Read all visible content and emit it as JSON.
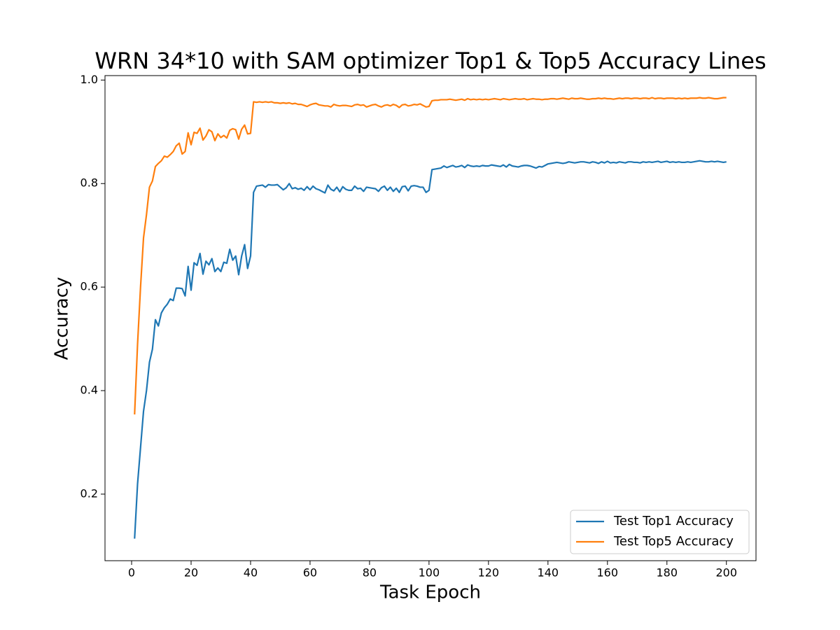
{
  "chart_data": {
    "type": "line",
    "title": "WRN 34*10 with SAM optimizer Top1 & Top5 Accuracy Lines",
    "x_label": "Task Epoch",
    "y_label": "Accuracy",
    "xlim": [
      -8.95,
      209.95
    ],
    "ylim": [
      0.0714,
      1.0086
    ],
    "xticks": [
      0,
      20,
      40,
      60,
      80,
      100,
      120,
      140,
      160,
      180,
      200
    ],
    "yticks": [
      0.2,
      0.4,
      0.6,
      0.8,
      {
        "value": 1,
        "label": "1.0"
      }
    ],
    "grid": false,
    "legend": "lower right",
    "x": [
      1,
      2,
      3,
      4,
      5,
      6,
      7,
      8,
      9,
      10,
      11,
      12,
      13,
      14,
      15,
      16,
      17,
      18,
      19,
      20,
      21,
      22,
      23,
      24,
      25,
      26,
      27,
      28,
      29,
      30,
      31,
      32,
      33,
      34,
      35,
      36,
      37,
      38,
      39,
      40,
      41,
      42,
      43,
      44,
      45,
      46,
      47,
      48,
      49,
      50,
      51,
      52,
      53,
      54,
      55,
      56,
      57,
      58,
      59,
      60,
      61,
      62,
      63,
      64,
      65,
      66,
      67,
      68,
      69,
      70,
      71,
      72,
      73,
      74,
      75,
      76,
      77,
      78,
      79,
      80,
      81,
      82,
      83,
      84,
      85,
      86,
      87,
      88,
      89,
      90,
      91,
      92,
      93,
      94,
      95,
      96,
      97,
      98,
      99,
      100,
      101,
      102,
      103,
      104,
      105,
      106,
      107,
      108,
      109,
      110,
      111,
      112,
      113,
      114,
      115,
      116,
      117,
      118,
      119,
      120,
      121,
      122,
      123,
      124,
      125,
      126,
      127,
      128,
      129,
      130,
      131,
      132,
      133,
      134,
      135,
      136,
      137,
      138,
      139,
      140,
      141,
      142,
      143,
      144,
      145,
      146,
      147,
      148,
      149,
      150,
      151,
      152,
      153,
      154,
      155,
      156,
      157,
      158,
      159,
      160,
      161,
      162,
      163,
      164,
      165,
      166,
      167,
      168,
      169,
      170,
      171,
      172,
      173,
      174,
      175,
      176,
      177,
      178,
      179,
      180,
      181,
      182,
      183,
      184,
      185,
      186,
      187,
      188,
      189,
      190,
      191,
      192,
      193,
      194,
      195,
      196,
      197,
      198,
      199,
      200
    ],
    "series": [
      {
        "name": "Test Top1 Accuracy",
        "color": "#1f77b4",
        "values": [
          0.114,
          0.22,
          0.29,
          0.36,
          0.4,
          0.455,
          0.48,
          0.537,
          0.525,
          0.55,
          0.56,
          0.567,
          0.577,
          0.574,
          0.598,
          0.598,
          0.597,
          0.583,
          0.64,
          0.594,
          0.647,
          0.642,
          0.665,
          0.625,
          0.65,
          0.643,
          0.655,
          0.63,
          0.637,
          0.63,
          0.648,
          0.646,
          0.673,
          0.652,
          0.66,
          0.624,
          0.66,
          0.682,
          0.636,
          0.66,
          0.783,
          0.795,
          0.796,
          0.797,
          0.793,
          0.798,
          0.797,
          0.797,
          0.798,
          0.793,
          0.788,
          0.792,
          0.8,
          0.79,
          0.792,
          0.789,
          0.791,
          0.787,
          0.794,
          0.788,
          0.795,
          0.79,
          0.788,
          0.785,
          0.782,
          0.797,
          0.789,
          0.786,
          0.793,
          0.784,
          0.794,
          0.789,
          0.787,
          0.787,
          0.795,
          0.79,
          0.791,
          0.785,
          0.793,
          0.792,
          0.791,
          0.79,
          0.785,
          0.792,
          0.795,
          0.787,
          0.793,
          0.785,
          0.791,
          0.783,
          0.794,
          0.795,
          0.786,
          0.795,
          0.796,
          0.795,
          0.793,
          0.793,
          0.783,
          0.787,
          0.827,
          0.828,
          0.829,
          0.83,
          0.834,
          0.831,
          0.833,
          0.835,
          0.832,
          0.833,
          0.835,
          0.831,
          0.836,
          0.834,
          0.833,
          0.834,
          0.833,
          0.835,
          0.834,
          0.834,
          0.836,
          0.835,
          0.834,
          0.833,
          0.836,
          0.832,
          0.837,
          0.834,
          0.833,
          0.832,
          0.834,
          0.835,
          0.835,
          0.834,
          0.832,
          0.83,
          0.833,
          0.832,
          0.835,
          0.838,
          0.839,
          0.84,
          0.841,
          0.84,
          0.839,
          0.84,
          0.842,
          0.841,
          0.84,
          0.841,
          0.842,
          0.842,
          0.841,
          0.84,
          0.842,
          0.841,
          0.839,
          0.842,
          0.84,
          0.843,
          0.84,
          0.841,
          0.84,
          0.842,
          0.841,
          0.84,
          0.842,
          0.842,
          0.841,
          0.841,
          0.84,
          0.842,
          0.841,
          0.842,
          0.841,
          0.842,
          0.843,
          0.841,
          0.842,
          0.843,
          0.841,
          0.842,
          0.841,
          0.842,
          0.841,
          0.841,
          0.842,
          0.841,
          0.842,
          0.843,
          0.844,
          0.843,
          0.842,
          0.842,
          0.843,
          0.842,
          0.843,
          0.842,
          0.841,
          0.842
        ]
      },
      {
        "name": "Test Top5 Accuracy",
        "color": "#ff7f0e",
        "values": [
          0.354,
          0.49,
          0.6,
          0.695,
          0.74,
          0.793,
          0.805,
          0.833,
          0.839,
          0.844,
          0.853,
          0.851,
          0.856,
          0.862,
          0.873,
          0.878,
          0.857,
          0.862,
          0.898,
          0.875,
          0.899,
          0.897,
          0.907,
          0.884,
          0.892,
          0.904,
          0.9,
          0.883,
          0.896,
          0.889,
          0.893,
          0.888,
          0.903,
          0.906,
          0.904,
          0.886,
          0.905,
          0.913,
          0.896,
          0.897,
          0.958,
          0.957,
          0.958,
          0.957,
          0.958,
          0.957,
          0.958,
          0.956,
          0.956,
          0.955,
          0.956,
          0.955,
          0.956,
          0.954,
          0.955,
          0.953,
          0.953,
          0.951,
          0.949,
          0.952,
          0.954,
          0.955,
          0.952,
          0.951,
          0.95,
          0.95,
          0.948,
          0.953,
          0.951,
          0.95,
          0.951,
          0.951,
          0.95,
          0.949,
          0.952,
          0.953,
          0.951,
          0.952,
          0.948,
          0.95,
          0.952,
          0.953,
          0.95,
          0.948,
          0.951,
          0.952,
          0.95,
          0.953,
          0.951,
          0.947,
          0.952,
          0.953,
          0.95,
          0.951,
          0.953,
          0.952,
          0.954,
          0.951,
          0.948,
          0.949,
          0.96,
          0.961,
          0.961,
          0.962,
          0.962,
          0.962,
          0.963,
          0.962,
          0.961,
          0.962,
          0.963,
          0.961,
          0.964,
          0.962,
          0.963,
          0.962,
          0.963,
          0.962,
          0.963,
          0.962,
          0.963,
          0.964,
          0.963,
          0.962,
          0.964,
          0.963,
          0.962,
          0.963,
          0.964,
          0.963,
          0.963,
          0.964,
          0.962,
          0.963,
          0.964,
          0.963,
          0.963,
          0.962,
          0.963,
          0.963,
          0.964,
          0.964,
          0.963,
          0.964,
          0.965,
          0.964,
          0.963,
          0.965,
          0.964,
          0.964,
          0.965,
          0.964,
          0.963,
          0.963,
          0.964,
          0.964,
          0.965,
          0.964,
          0.965,
          0.964,
          0.964,
          0.963,
          0.964,
          0.965,
          0.964,
          0.965,
          0.965,
          0.964,
          0.965,
          0.965,
          0.964,
          0.965,
          0.965,
          0.964,
          0.966,
          0.964,
          0.965,
          0.965,
          0.964,
          0.965,
          0.965,
          0.965,
          0.964,
          0.965,
          0.964,
          0.965,
          0.964,
          0.965,
          0.965,
          0.965,
          0.966,
          0.965,
          0.965,
          0.966,
          0.965,
          0.964,
          0.964,
          0.965,
          0.966,
          0.966
        ]
      }
    ]
  }
}
